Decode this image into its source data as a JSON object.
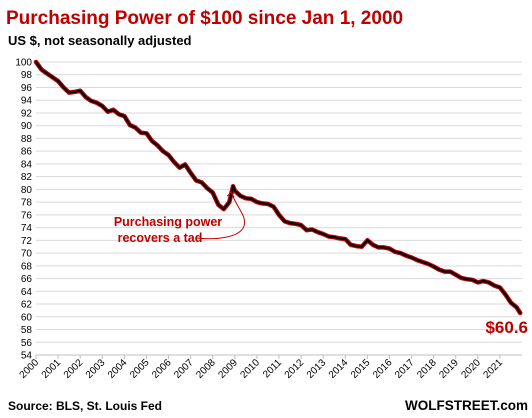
{
  "chart_data": {
    "type": "line",
    "title": "Purchasing  Power of $100 since Jan 1, 2000",
    "subtitle": "US $, not seasonally adjusted",
    "xlabel": "",
    "ylabel": "",
    "xlim": [
      2000,
      2022
    ],
    "ylim": [
      54,
      100
    ],
    "y_ticks": [
      "100",
      "98",
      "96",
      "94",
      "92",
      "90",
      "88",
      "86",
      "84",
      "82",
      "80",
      "78",
      "76",
      "74",
      "72",
      "70",
      "68",
      "66",
      "64",
      "62",
      "60",
      "58",
      "56",
      "54"
    ],
    "x_ticks": [
      "2000",
      "2001",
      "2002",
      "2003",
      "2004",
      "2005",
      "2006",
      "2007",
      "2008",
      "2009",
      "2010",
      "2011",
      "2012",
      "2013",
      "2014",
      "2015",
      "2016",
      "2017",
      "2018",
      "2019",
      "2020",
      "2021"
    ],
    "grid": true,
    "series": [
      {
        "color": "#000000",
        "highlight_color": "#c00000",
        "x": [
          2000.0,
          2000.25,
          2000.5,
          2000.75,
          2001.0,
          2001.25,
          2001.5,
          2001.75,
          2002.0,
          2002.25,
          2002.5,
          2002.75,
          2003.0,
          2003.25,
          2003.5,
          2003.75,
          2004.0,
          2004.25,
          2004.5,
          2004.75,
          2005.0,
          2005.25,
          2005.5,
          2005.75,
          2006.0,
          2006.25,
          2006.5,
          2006.75,
          2007.0,
          2007.25,
          2007.5,
          2007.75,
          2008.0,
          2008.25,
          2008.5,
          2008.75,
          2008.92,
          2009.0,
          2009.25,
          2009.5,
          2009.75,
          2010.0,
          2010.25,
          2010.5,
          2010.75,
          2011.0,
          2011.25,
          2011.5,
          2011.75,
          2012.0,
          2012.25,
          2012.5,
          2012.75,
          2013.0,
          2013.25,
          2013.5,
          2013.75,
          2014.0,
          2014.25,
          2014.5,
          2014.75,
          2015.0,
          2015.25,
          2015.5,
          2015.75,
          2016.0,
          2016.25,
          2016.5,
          2016.75,
          2017.0,
          2017.25,
          2017.5,
          2017.75,
          2018.0,
          2018.25,
          2018.5,
          2018.75,
          2019.0,
          2019.25,
          2019.5,
          2019.75,
          2020.0,
          2020.25,
          2020.5,
          2020.75,
          2021.0,
          2021.25,
          2021.5,
          2021.75,
          2021.92
        ],
        "values": [
          100.0,
          98.8,
          98.2,
          97.6,
          97.0,
          96.0,
          95.2,
          95.3,
          95.5,
          94.5,
          93.9,
          93.6,
          93.1,
          92.2,
          92.5,
          91.8,
          91.5,
          90.1,
          89.7,
          88.9,
          88.8,
          87.6,
          86.9,
          86.0,
          85.4,
          84.3,
          83.4,
          83.9,
          82.6,
          81.4,
          81.1,
          80.2,
          79.5,
          77.6,
          76.9,
          78.0,
          80.5,
          79.8,
          79.0,
          78.6,
          78.5,
          78.0,
          77.8,
          77.7,
          77.3,
          76.0,
          75.0,
          74.7,
          74.6,
          74.4,
          73.6,
          73.7,
          73.3,
          73.0,
          72.6,
          72.5,
          72.3,
          72.2,
          71.3,
          71.1,
          71.0,
          72.0,
          71.3,
          70.9,
          70.9,
          70.7,
          70.2,
          70.0,
          69.6,
          69.3,
          68.9,
          68.6,
          68.3,
          67.9,
          67.4,
          67.1,
          67.1,
          66.6,
          66.1,
          65.9,
          65.8,
          65.4,
          65.6,
          65.4,
          64.9,
          64.6,
          63.5,
          62.2,
          61.5,
          60.6
        ]
      }
    ],
    "annotations": [
      {
        "text_lines": [
          "Purchasing power",
          "recovers a tad"
        ],
        "points_to_x": 2008.92,
        "points_to_y": 80.5
      },
      {
        "text": "$60.6",
        "x": 2021.92,
        "y": 60.6
      }
    ]
  },
  "footer": {
    "source": "Source: BLS, St. Louis Fed",
    "brand": "WOLFSTREET.com"
  }
}
